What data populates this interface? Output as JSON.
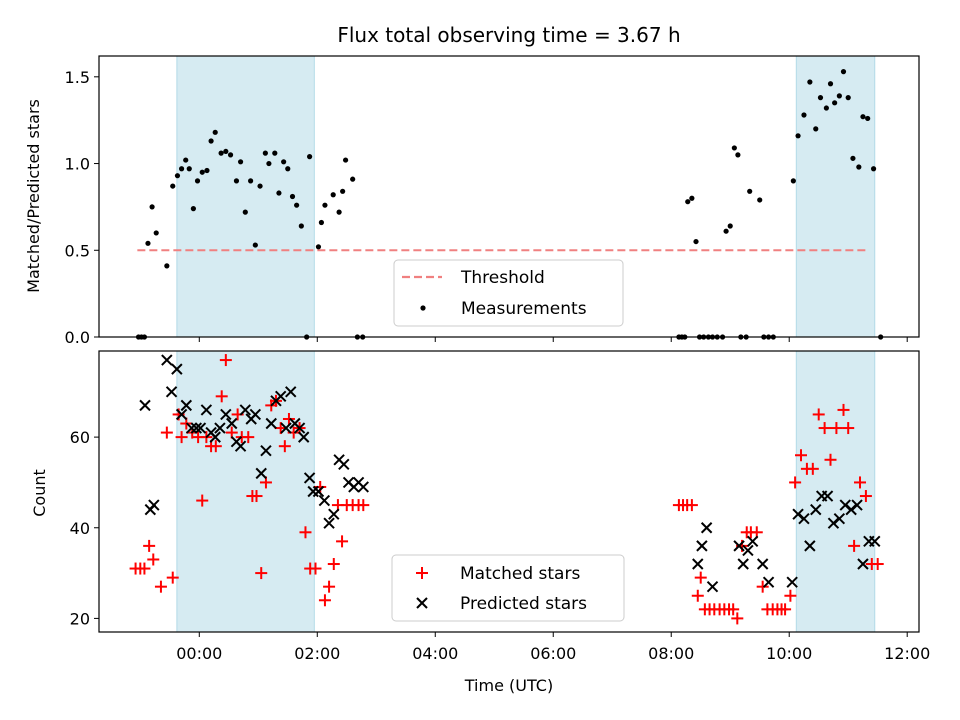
{
  "figure": {
    "title": "Flux total observing time = 3.67 h"
  },
  "chart_data": [
    {
      "type": "scatter",
      "panel": "top",
      "title": "Flux total observing time = 3.67 h",
      "ylabel": "Matched/Predicted stars",
      "xlabel": "",
      "xlim_hours": [
        -1.7,
        12.2
      ],
      "ylim": [
        0,
        1.62
      ],
      "yticks": [
        0.0,
        0.5,
        1.0,
        1.5
      ],
      "ytick_labels": [
        "0.0",
        "0.5",
        "1.0",
        "1.5"
      ],
      "shaded_intervals_hours": [
        [
          -0.38,
          1.95
        ],
        [
          10.12,
          11.45
        ]
      ],
      "shade_color": "#add8e6",
      "threshold": {
        "name": "Threshold",
        "value": 0.5,
        "x_range_hours": [
          -1.05,
          11.35
        ],
        "color": "#f08080"
      },
      "measurements": {
        "name": "Measurements",
        "color": "#000000",
        "x_hours": [
          -1.03,
          -0.98,
          -0.93,
          -0.87,
          -0.8,
          -0.73,
          -0.55,
          -0.45,
          -0.37,
          -0.3,
          -0.23,
          -0.17,
          -0.1,
          -0.03,
          0.05,
          0.13,
          0.2,
          0.27,
          0.37,
          0.45,
          0.53,
          0.63,
          0.7,
          0.78,
          0.87,
          0.95,
          1.03,
          1.12,
          1.18,
          1.28,
          1.35,
          1.43,
          1.5,
          1.58,
          1.65,
          1.73,
          1.82,
          1.87,
          2.02,
          2.07,
          2.13,
          2.27,
          2.37,
          2.43,
          2.48,
          2.6,
          2.68,
          2.77,
          8.13,
          8.18,
          8.23,
          8.28,
          8.35,
          8.42,
          8.48,
          8.55,
          8.63,
          8.7,
          8.78,
          8.87,
          8.93,
          9.0,
          9.07,
          9.13,
          9.18,
          9.27,
          9.33,
          9.5,
          9.57,
          9.65,
          9.73,
          10.07,
          10.15,
          10.25,
          10.35,
          10.45,
          10.53,
          10.63,
          10.7,
          10.77,
          10.85,
          10.92,
          11.0,
          11.08,
          11.18,
          11.25,
          11.33,
          11.43,
          11.55
        ],
        "y_values": [
          0.0,
          0.0,
          0.0,
          0.54,
          0.75,
          0.6,
          0.41,
          0.87,
          0.93,
          0.97,
          1.02,
          0.97,
          0.74,
          0.9,
          0.95,
          0.96,
          1.13,
          1.18,
          1.06,
          1.07,
          1.05,
          0.9,
          1.01,
          0.72,
          0.9,
          0.53,
          0.87,
          1.06,
          1.0,
          1.06,
          0.83,
          1.01,
          0.97,
          0.81,
          0.76,
          0.64,
          0.0,
          1.04,
          0.52,
          0.66,
          0.76,
          0.82,
          0.72,
          0.84,
          1.02,
          0.91,
          0.0,
          0.0,
          0.0,
          0.0,
          0.0,
          0.78,
          0.8,
          0.55,
          0.0,
          0.0,
          0.0,
          0.0,
          0.0,
          0.0,
          0.61,
          0.64,
          1.09,
          1.05,
          0.0,
          0.0,
          0.84,
          0.79,
          0.0,
          0.0,
          0.0,
          0.9,
          1.16,
          1.28,
          1.47,
          1.2,
          1.38,
          1.32,
          1.46,
          1.35,
          1.39,
          1.53,
          1.38,
          1.03,
          0.98,
          1.27,
          1.26,
          0.97,
          0.0
        ]
      },
      "legend": {
        "placement": "lower center",
        "entries": [
          "Threshold",
          "Measurements"
        ]
      }
    },
    {
      "type": "scatter",
      "panel": "bottom",
      "ylabel": "Count",
      "xlabel": "Time (UTC)",
      "xlim_hours": [
        -1.7,
        12.2
      ],
      "ylim": [
        17,
        79
      ],
      "yticks": [
        20,
        40,
        60
      ],
      "ytick_labels": [
        "20",
        "40",
        "60"
      ],
      "xticks_hours": [
        0,
        2,
        4,
        6,
        8,
        10,
        12
      ],
      "xtick_labels": [
        "00:00",
        "02:00",
        "04:00",
        "06:00",
        "08:00",
        "10:00",
        "12:00"
      ],
      "shaded_intervals_hours": [
        [
          -0.38,
          1.95
        ],
        [
          10.12,
          11.45
        ]
      ],
      "series": [
        {
          "name": "Matched stars",
          "marker": "plus",
          "color": "#ff0000",
          "x_hours": [
            -1.08,
            -1.0,
            -0.93,
            -0.85,
            -0.78,
            -0.65,
            -0.55,
            -0.45,
            -0.35,
            -0.3,
            -0.22,
            -0.12,
            -0.02,
            0.05,
            0.12,
            0.2,
            0.28,
            0.38,
            0.45,
            0.55,
            0.65,
            0.72,
            0.83,
            0.9,
            0.97,
            1.05,
            1.13,
            1.22,
            1.3,
            1.38,
            1.45,
            1.52,
            1.6,
            1.7,
            1.8,
            1.88,
            1.97,
            2.05,
            2.13,
            2.2,
            2.28,
            2.35,
            2.42,
            2.5,
            2.6,
            2.7,
            2.78,
            8.13,
            8.2,
            8.27,
            8.35,
            8.45,
            8.5,
            8.57,
            8.65,
            8.73,
            8.82,
            8.9,
            8.98,
            9.05,
            9.12,
            9.2,
            9.28,
            9.35,
            9.45,
            9.55,
            9.63,
            9.72,
            9.8,
            9.87,
            9.93,
            10.02,
            10.1,
            10.2,
            10.3,
            10.4,
            10.5,
            10.6,
            10.7,
            10.8,
            10.92,
            11.0,
            11.1,
            11.2,
            11.3,
            11.4,
            11.5
          ],
          "y_values": [
            31,
            31,
            31,
            36,
            33,
            27,
            61,
            29,
            65,
            60,
            63,
            61,
            60,
            46,
            60,
            58,
            58,
            69,
            77,
            61,
            65,
            60,
            60,
            47,
            47,
            30,
            50,
            67,
            68,
            62,
            58,
            64,
            61,
            62,
            39,
            31,
            31,
            49,
            24,
            27,
            32,
            45,
            37,
            45,
            45,
            45,
            45,
            45,
            45,
            45,
            45,
            25,
            29,
            22,
            22,
            22,
            22,
            22,
            22,
            22,
            20,
            36,
            39,
            39,
            39,
            27,
            22,
            22,
            22,
            22,
            22,
            25,
            50,
            56,
            53,
            53,
            65,
            62,
            55,
            62,
            66,
            62,
            36,
            50,
            47,
            32,
            32
          ]
        },
        {
          "name": "Predicted stars",
          "marker": "x",
          "color": "#000000",
          "x_hours": [
            -0.92,
            -0.83,
            -0.77,
            -0.55,
            -0.47,
            -0.38,
            -0.3,
            -0.22,
            -0.13,
            -0.05,
            0.02,
            0.12,
            0.2,
            0.27,
            0.35,
            0.45,
            0.55,
            0.63,
            0.7,
            0.78,
            0.88,
            0.95,
            1.05,
            1.13,
            1.22,
            1.3,
            1.38,
            1.47,
            1.55,
            1.62,
            1.7,
            1.77,
            1.87,
            1.93,
            2.02,
            2.12,
            2.2,
            2.28,
            2.37,
            2.45,
            2.53,
            2.62,
            2.7,
            2.78,
            8.45,
            8.52,
            8.6,
            8.7,
            9.15,
            9.22,
            9.3,
            9.38,
            9.55,
            9.65,
            10.05,
            10.15,
            10.25,
            10.35,
            10.45,
            10.55,
            10.65,
            10.75,
            10.85,
            10.95,
            11.05,
            11.15,
            11.25,
            11.35,
            11.45
          ],
          "y_values": [
            67,
            44,
            45,
            77,
            70,
            75,
            65,
            67,
            62,
            62,
            62,
            66,
            61,
            60,
            62,
            65,
            63,
            59,
            58,
            66,
            64,
            65,
            52,
            57,
            63,
            68,
            69,
            62,
            70,
            63,
            62,
            60,
            51,
            48,
            48,
            46,
            41,
            43,
            55,
            54,
            50,
            49,
            50,
            49,
            32,
            36,
            40,
            27,
            36,
            32,
            35,
            37,
            32,
            28,
            28,
            43,
            42,
            36,
            44,
            47,
            47,
            41,
            42,
            45,
            44,
            45,
            32,
            37,
            37
          ]
        }
      ],
      "legend": {
        "placement": "lower center",
        "entries": [
          "Matched stars",
          "Predicted stars"
        ]
      }
    }
  ]
}
